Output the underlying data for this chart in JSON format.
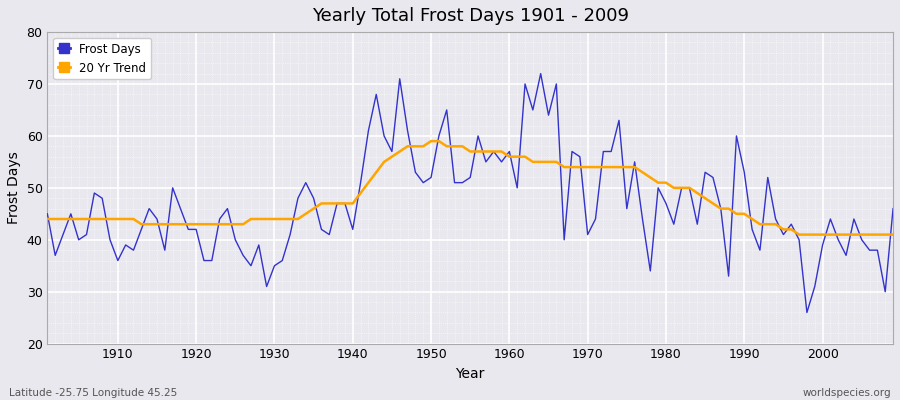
{
  "title": "Yearly Total Frost Days 1901 - 2009",
  "xlabel": "Year",
  "ylabel": "Frost Days",
  "subtitle": "Latitude -25.75 Longitude 45.25",
  "watermark": "worldspecies.org",
  "ylim": [
    20,
    80
  ],
  "xlim": [
    1901,
    2009
  ],
  "bg_color": "#e8e8ee",
  "fig_color": "#e8e8ee",
  "line_color": "#3333cc",
  "trend_color": "#ffa500",
  "years": [
    1901,
    1902,
    1903,
    1904,
    1905,
    1906,
    1907,
    1908,
    1909,
    1910,
    1911,
    1912,
    1913,
    1914,
    1915,
    1916,
    1917,
    1918,
    1919,
    1920,
    1921,
    1922,
    1923,
    1924,
    1925,
    1926,
    1927,
    1928,
    1929,
    1930,
    1931,
    1932,
    1933,
    1934,
    1935,
    1936,
    1937,
    1938,
    1939,
    1940,
    1941,
    1942,
    1943,
    1944,
    1945,
    1946,
    1947,
    1948,
    1949,
    1950,
    1951,
    1952,
    1953,
    1954,
    1955,
    1956,
    1957,
    1958,
    1959,
    1960,
    1961,
    1962,
    1963,
    1964,
    1965,
    1966,
    1967,
    1968,
    1969,
    1970,
    1971,
    1972,
    1973,
    1974,
    1975,
    1976,
    1977,
    1978,
    1979,
    1980,
    1981,
    1982,
    1983,
    1984,
    1985,
    1986,
    1987,
    1988,
    1989,
    1990,
    1991,
    1992,
    1993,
    1994,
    1995,
    1996,
    1997,
    1998,
    1999,
    2000,
    2001,
    2002,
    2003,
    2004,
    2005,
    2006,
    2007,
    2008,
    2009
  ],
  "frost_days": [
    45,
    37,
    41,
    45,
    40,
    41,
    49,
    48,
    40,
    36,
    39,
    38,
    42,
    46,
    44,
    38,
    50,
    46,
    42,
    42,
    36,
    36,
    44,
    46,
    40,
    37,
    35,
    39,
    31,
    35,
    36,
    41,
    48,
    51,
    48,
    42,
    41,
    47,
    47,
    42,
    51,
    61,
    68,
    60,
    57,
    71,
    61,
    53,
    51,
    52,
    60,
    65,
    51,
    51,
    52,
    60,
    55,
    57,
    55,
    57,
    50,
    70,
    65,
    72,
    64,
    70,
    40,
    57,
    56,
    41,
    44,
    57,
    57,
    63,
    46,
    55,
    44,
    34,
    50,
    47,
    43,
    50,
    50,
    43,
    53,
    52,
    46,
    33,
    60,
    53,
    42,
    38,
    52,
    44,
    41,
    43,
    40,
    26,
    31,
    39,
    44,
    40,
    37,
    44,
    40,
    38,
    38,
    30,
    46
  ],
  "trend_values": [
    44,
    44,
    44,
    44,
    44,
    44,
    44,
    44,
    44,
    44,
    44,
    44,
    43,
    43,
    43,
    43,
    43,
    43,
    43,
    43,
    43,
    43,
    43,
    43,
    43,
    43,
    44,
    44,
    44,
    44,
    44,
    44,
    44,
    45,
    46,
    47,
    47,
    47,
    47,
    47,
    49,
    51,
    53,
    55,
    56,
    57,
    58,
    58,
    58,
    59,
    59,
    58,
    58,
    58,
    57,
    57,
    57,
    57,
    57,
    56,
    56,
    56,
    55,
    55,
    55,
    55,
    54,
    54,
    54,
    54,
    54,
    54,
    54,
    54,
    54,
    54,
    53,
    52,
    51,
    51,
    50,
    50,
    50,
    49,
    48,
    47,
    46,
    46,
    45,
    45,
    44,
    43,
    43,
    43,
    42,
    42,
    41,
    41,
    41,
    41,
    41,
    41,
    41,
    41,
    41,
    41,
    41,
    41,
    41
  ]
}
